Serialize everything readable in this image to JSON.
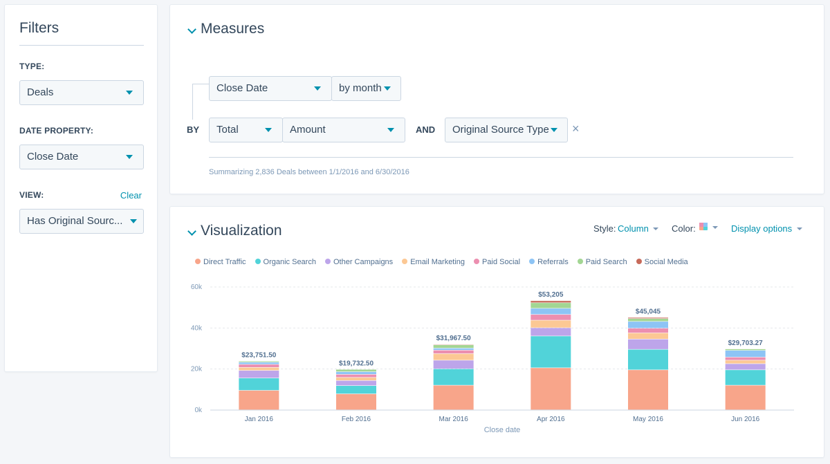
{
  "filters": {
    "title": "Filters",
    "type_label": "TYPE:",
    "type_value": "Deals",
    "date_label": "DATE PROPERTY:",
    "date_value": "Close Date",
    "view_label": "VIEW:",
    "view_clear": "Clear",
    "view_value": "Has Original Sourc..."
  },
  "measures": {
    "title": "Measures",
    "date_field": "Close Date",
    "frequency": "by month",
    "by_label": "BY",
    "aggregate": "Total",
    "measure": "Amount",
    "and_label": "AND",
    "breakdown": "Original Source Type",
    "remove_icon": "×",
    "summary": "Summarizing 2,836 Deals between 1/1/2016 and 6/30/2016"
  },
  "visualization": {
    "title": "Visualization",
    "style_label": "Style:",
    "style_value": "Column",
    "color_label": "Color:",
    "display_options": "Display options"
  },
  "chart_data": {
    "type": "bar",
    "stacked": true,
    "xlabel": "Close date",
    "ylabel": "",
    "ylim": [
      0,
      60000
    ],
    "yticks": [
      "0k",
      "20k",
      "40k",
      "60k"
    ],
    "categories": [
      "Jan 2016",
      "Feb 2016",
      "Mar 2016",
      "Apr 2016",
      "May 2016",
      "Jun 2016"
    ],
    "totals": [
      "$23,751.50",
      "$19,732.50",
      "$31,967.50",
      "$53,205",
      "$45,045",
      "$29,703.27"
    ],
    "legend_position": "top-left",
    "grid": true,
    "series": [
      {
        "name": "Direct Traffic",
        "color": "#f8a58a",
        "values": [
          9500,
          7800,
          12000,
          20500,
          19500,
          12000
        ]
      },
      {
        "name": "Organic Search",
        "color": "#51d3d9",
        "values": [
          6000,
          4000,
          8000,
          15500,
          10000,
          7500
        ]
      },
      {
        "name": "Other Campaigns",
        "color": "#bda5ea",
        "values": [
          3700,
          2500,
          4200,
          4000,
          5000,
          3000
        ]
      },
      {
        "name": "Email Marketing",
        "color": "#fcc894",
        "values": [
          1500,
          1500,
          3200,
          3700,
          3000,
          1700
        ]
      },
      {
        "name": "Paid Social",
        "color": "#ec8fb0",
        "values": [
          1500,
          1500,
          1700,
          2800,
          2300,
          1500
        ]
      },
      {
        "name": "Referrals",
        "color": "#8dc4f5",
        "values": [
          1000,
          1300,
          1000,
          3000,
          3300,
          3300
        ]
      },
      {
        "name": "Paid Search",
        "color": "#a3d693",
        "values": [
          551,
          1132,
          1568,
          2705,
          1400,
          703
        ]
      },
      {
        "name": "Social Media",
        "color": "#c76a5a",
        "values": [
          0,
          0,
          300,
          1000,
          545,
          0
        ]
      }
    ]
  }
}
